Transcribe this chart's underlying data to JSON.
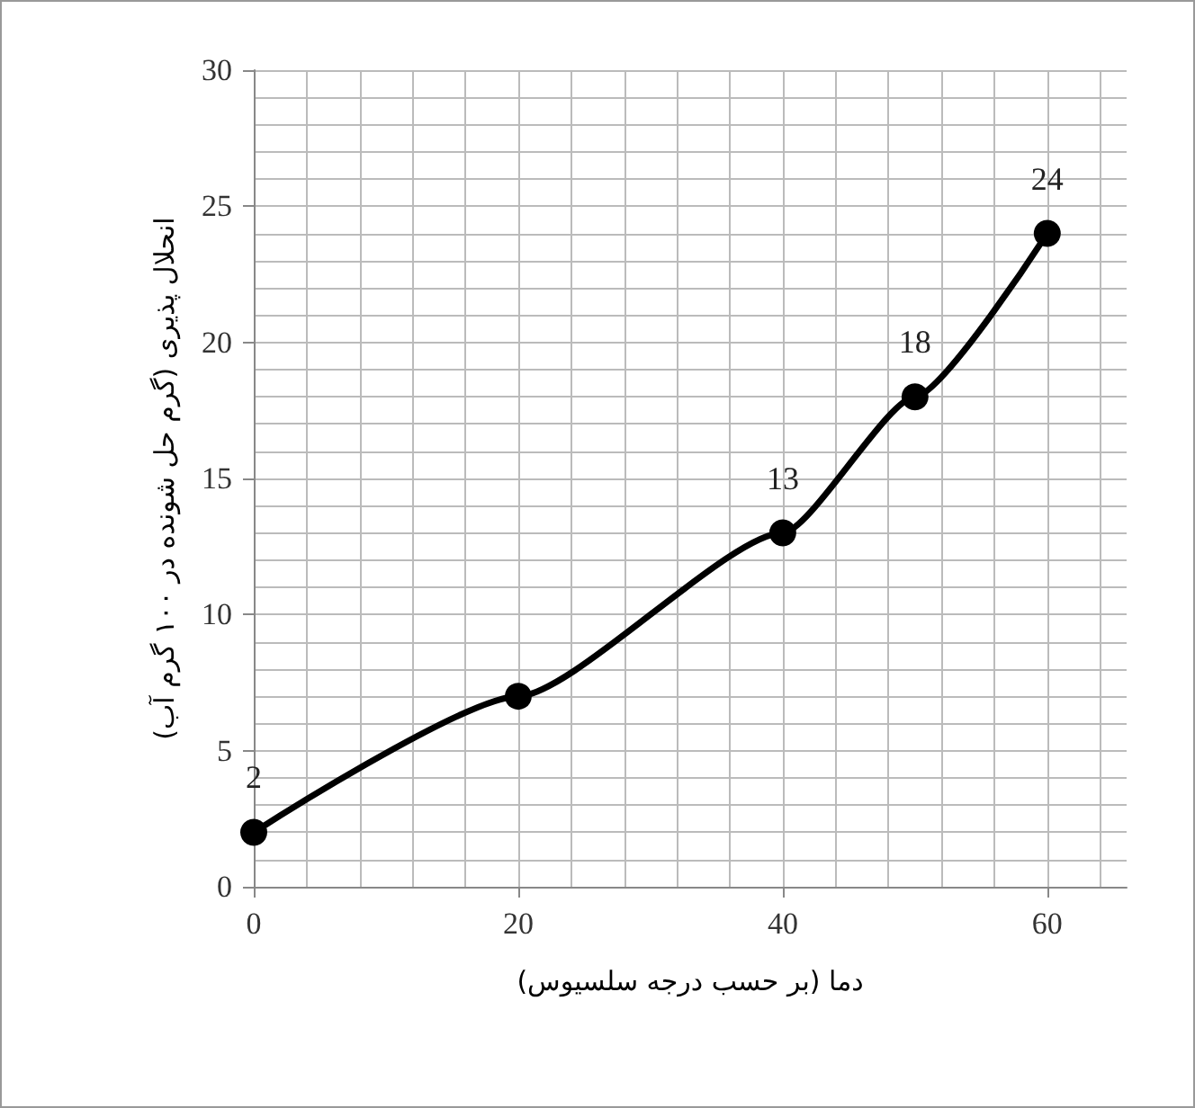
{
  "chart_data": {
    "type": "line",
    "xlabel": "دما (بر حسب درجه سلسیوس)",
    "ylabel": "انحلال پذیری (گرم حل شونده در ۱۰۰ گرم آب)",
    "x": [
      0,
      20,
      40,
      50,
      60
    ],
    "series": [
      {
        "color": "#000000",
        "values": [
          2,
          7,
          13,
          18,
          24
        ],
        "value_labels": [
          "2",
          null,
          "13",
          "18",
          "24"
        ]
      }
    ],
    "xlim": [
      0,
      66
    ],
    "xticks": [
      0,
      {
        "value": 4,
        "label": null
      },
      {
        "value": 8,
        "label": null
      },
      {
        "value": 12,
        "label": null
      },
      {
        "value": 16,
        "label": null
      },
      20,
      {
        "value": 24,
        "label": null
      },
      {
        "value": 28,
        "label": null
      },
      {
        "value": 32,
        "label": null
      },
      {
        "value": 36,
        "label": null
      },
      40,
      {
        "value": 44,
        "label": null
      },
      {
        "value": 48,
        "label": null
      },
      {
        "value": 52,
        "label": null
      },
      {
        "value": 56,
        "label": null
      },
      60,
      {
        "value": 64,
        "label": null
      }
    ],
    "ylim": [
      0,
      30
    ],
    "yticks": [
      0,
      {
        "value": 1,
        "label": null
      },
      {
        "value": 2,
        "label": null
      },
      {
        "value": 3,
        "label": null
      },
      {
        "value": 4,
        "label": null
      },
      5,
      {
        "value": 6,
        "label": null
      },
      {
        "value": 7,
        "label": null
      },
      {
        "value": 8,
        "label": null
      },
      {
        "value": 9,
        "label": null
      },
      10,
      {
        "value": 11,
        "label": null
      },
      {
        "value": 12,
        "label": null
      },
      {
        "value": 13,
        "label": null
      },
      {
        "value": 14,
        "label": null
      },
      15,
      {
        "value": 16,
        "label": null
      },
      {
        "value": 17,
        "label": null
      },
      {
        "value": 18,
        "label": null
      },
      {
        "value": 19,
        "label": null
      },
      20,
      {
        "value": 21,
        "label": null
      },
      {
        "value": 22,
        "label": null
      },
      {
        "value": 23,
        "label": null
      },
      {
        "value": 24,
        "label": null
      },
      25,
      {
        "value": 26,
        "label": null
      },
      {
        "value": 27,
        "label": null
      },
      {
        "value": 28,
        "label": null
      },
      {
        "value": 29,
        "label": null
      },
      30
    ],
    "grid": true,
    "marker": "circle",
    "line_style": "solid"
  }
}
